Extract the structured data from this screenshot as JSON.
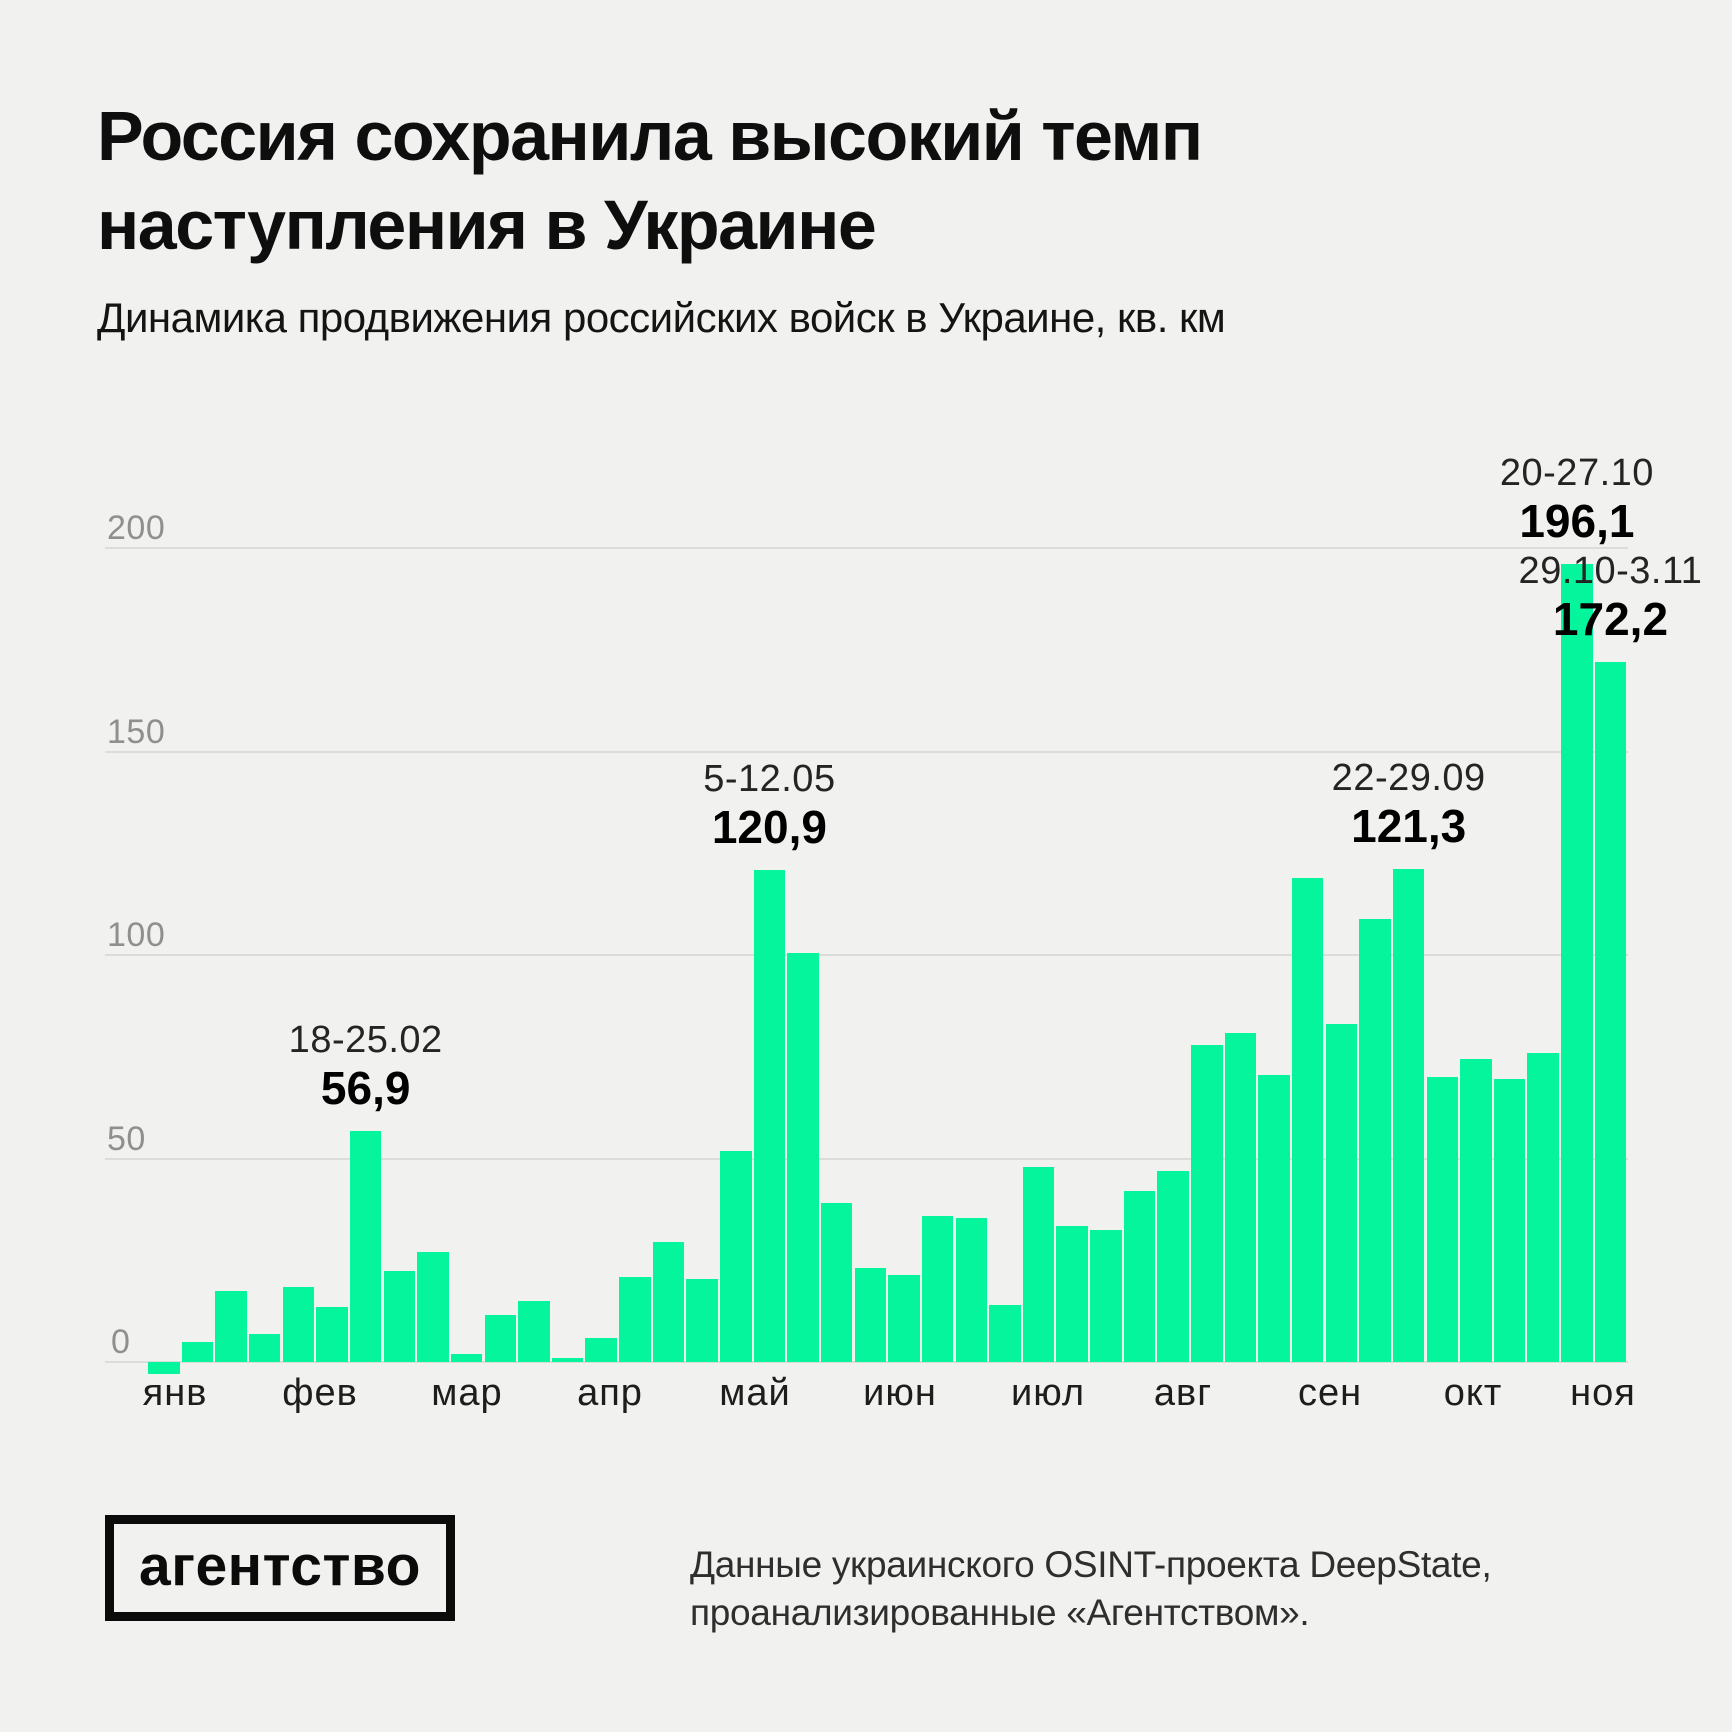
{
  "title": {
    "line1": "Россия сохранила высокий темп",
    "line2": "наступления в Украине"
  },
  "subtitle": "Динамика продвижения российских войск в Украине, кв. км",
  "chart_data": {
    "type": "bar",
    "title": "Динамика продвижения российских войск в Украине",
    "ylabel": "кв. км",
    "ylim": [
      0,
      200
    ],
    "yticks": [
      0,
      50,
      100,
      150,
      200
    ],
    "grid": true,
    "legend": "none",
    "bar_color": "#05f59d",
    "months": [
      "янв",
      "фев",
      "мар",
      "апр",
      "май",
      "июн",
      "июл",
      "авг",
      "сен",
      "окт",
      "ноя"
    ],
    "values": [
      -3,
      5,
      17.5,
      7,
      18.5,
      13.5,
      56.9,
      22.5,
      27,
      2,
      11.5,
      15,
      1,
      6,
      21,
      29.5,
      20.5,
      52,
      120.9,
      100.5,
      39,
      23,
      21.5,
      36,
      35.5,
      14,
      48,
      33.5,
      32.5,
      42,
      47,
      78,
      81,
      70.5,
      119,
      83,
      109,
      121.3,
      70,
      74.5,
      69.5,
      76,
      196.1,
      172.2
    ],
    "annotations": [
      {
        "bar_index": 6,
        "date": "18-25.02",
        "value": "56,9"
      },
      {
        "bar_index": 18,
        "date": "5-12.05",
        "value": "120,9"
      },
      {
        "bar_index": 37,
        "date": "22-29.09",
        "value": "121,3"
      },
      {
        "bar_index": 42,
        "date": "20-27.10",
        "value": "196,1"
      },
      {
        "bar_index": 43,
        "date": "29.10-3.11",
        "value": "172,2"
      }
    ]
  },
  "footer": {
    "logo_text": "агентство",
    "source_line1": "Данные украинского OSINT-проекта DeepState,",
    "source_line2": "проанализированные «Агентством»."
  }
}
